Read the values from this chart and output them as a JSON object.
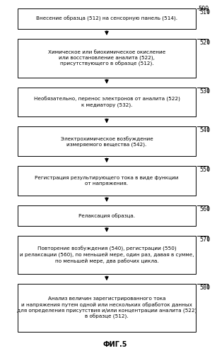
{
  "title": "ФИГ.5",
  "figure_label": "500",
  "background_color": "#ffffff",
  "box_fill": "#ffffff",
  "box_edge": "#000000",
  "arrow_color": "#000000",
  "text_color": "#000000",
  "steps": [
    {
      "id": "510",
      "label": "Внесение образца (512) на сенсорную панель (514).",
      "lines": 1
    },
    {
      "id": "520",
      "label": "Химическое или биохимическое окисление\nили восстановление аналита (522),\nприсутствующего в образце (512).",
      "lines": 3
    },
    {
      "id": "530",
      "label": "Необязательно, перенос электронов от аналита (522)\nк медиатору (532).",
      "lines": 2
    },
    {
      "id": "540",
      "label": "Электрохимическое возбуждение\nизмеряемого вещества (542).",
      "lines": 2
    },
    {
      "id": "550",
      "label": "Регистрация результирующего тока в виде функции\nот напряжения.",
      "lines": 2
    },
    {
      "id": "560",
      "label": "Релаксация образца.",
      "lines": 1
    },
    {
      "id": "570",
      "label": "Повторение возбуждения (540), регистрации (550)\nи релаксации (560), по меньшей мере, один раз, давая в сумме,\nпо меньшей мере, два рабочих цикла.",
      "lines": 3
    },
    {
      "id": "580",
      "label": "Анализ величин зарегистрированного тока\nи напряжения путем одной или нескольких обработок данных\nдля определения присутствия и/или концентрации аналита (522)\nв образце (512).",
      "lines": 4
    }
  ]
}
